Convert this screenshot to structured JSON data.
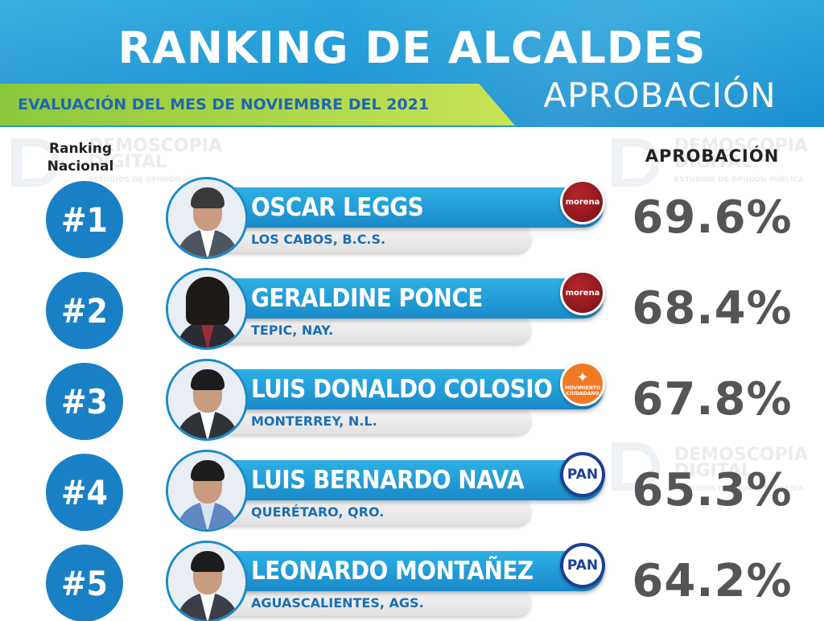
{
  "header": {
    "title": "RANKING DE ALCALDES",
    "subtitle": "EVALUACIÓN DEL MES DE NOVIEMBRE DEL 2021",
    "approval_title": "APROBACIÓN"
  },
  "columns": {
    "rank_label_line1": "Ranking",
    "rank_label_line2": "Nacional",
    "approval_label": "APROBACIÓN"
  },
  "watermark": {
    "line1": "DEMOSCOPIA",
    "line2": "DIGITAL",
    "line3": "ESTUDIOS DE OPINIÓN PÚBLICA"
  },
  "colors": {
    "header_blue": "#1a8fcf",
    "accent_green": "#8cc83c",
    "rank_blue": "#1a80c5",
    "city_blue": "#1a6fb5",
    "percent_gray": "#555555"
  },
  "rows": [
    {
      "rank": "#1",
      "name": "OSCAR LEGGS",
      "city": "LOS CABOS, B.C.S.",
      "party": "morena",
      "approval": "69.6%"
    },
    {
      "rank": "#2",
      "name": "GERALDINE PONCE",
      "city": "TEPIC, NAY.",
      "party": "morena",
      "approval": "68.4%"
    },
    {
      "rank": "#3",
      "name": "LUIS DONALDO COLOSIO",
      "city": "MONTERREY, N.L.",
      "party": "MOVIMIENTO CIUDADANO",
      "approval": "67.8%"
    },
    {
      "rank": "#4",
      "name": "LUIS BERNARDO NAVA",
      "city": "QUERÉTARO, QRO.",
      "party": "PAN",
      "approval": "65.3%"
    },
    {
      "rank": "#5",
      "name": "LEONARDO MONTAÑEZ",
      "city": "AGUASCALIENTES, AGS.",
      "party": "PAN",
      "approval": "64.2%"
    }
  ]
}
